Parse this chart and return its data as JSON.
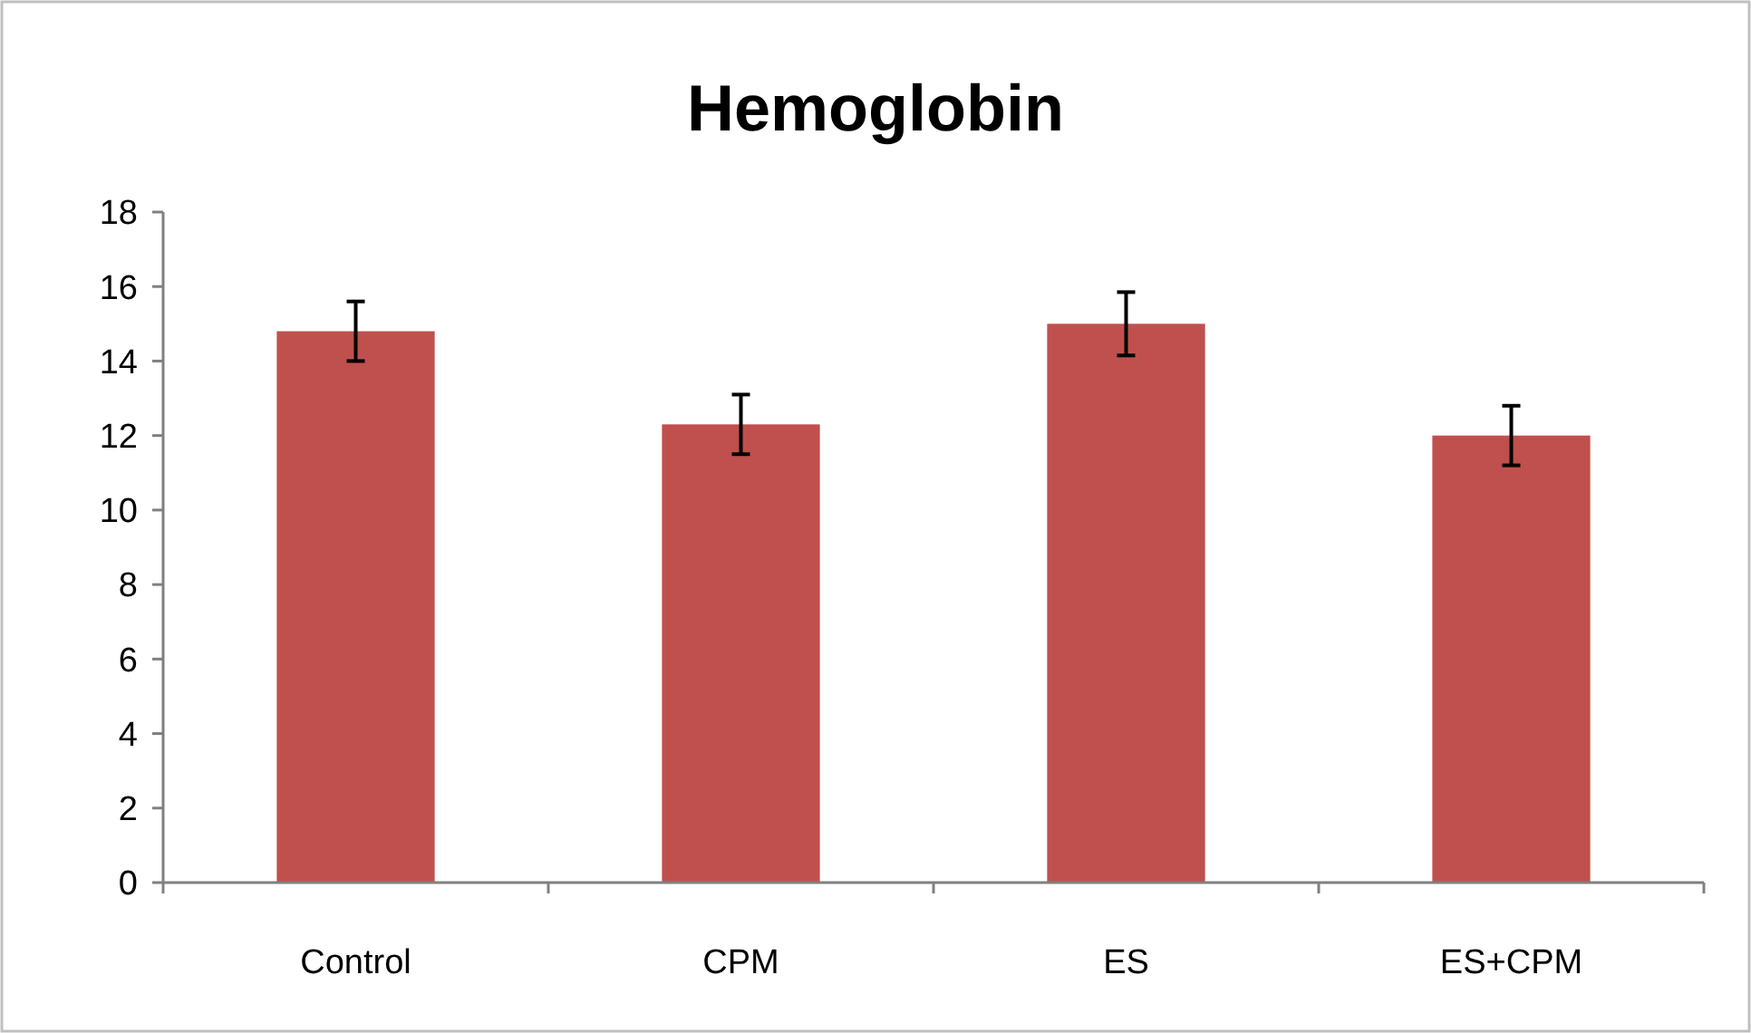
{
  "chart_data": {
    "type": "bar",
    "title": "Hemoglobin",
    "categories": [
      "Control",
      "CPM",
      "ES",
      "ES+CPM"
    ],
    "values": [
      14.8,
      12.3,
      15.0,
      12.0
    ],
    "color": "#c0504d",
    "errors": [
      0.8,
      0.8,
      0.85,
      0.8
    ],
    "ylim": [
      0,
      18
    ],
    "yticks": [
      0,
      2,
      4,
      6,
      8,
      10,
      12,
      14,
      16,
      18
    ],
    "grid": false
  }
}
